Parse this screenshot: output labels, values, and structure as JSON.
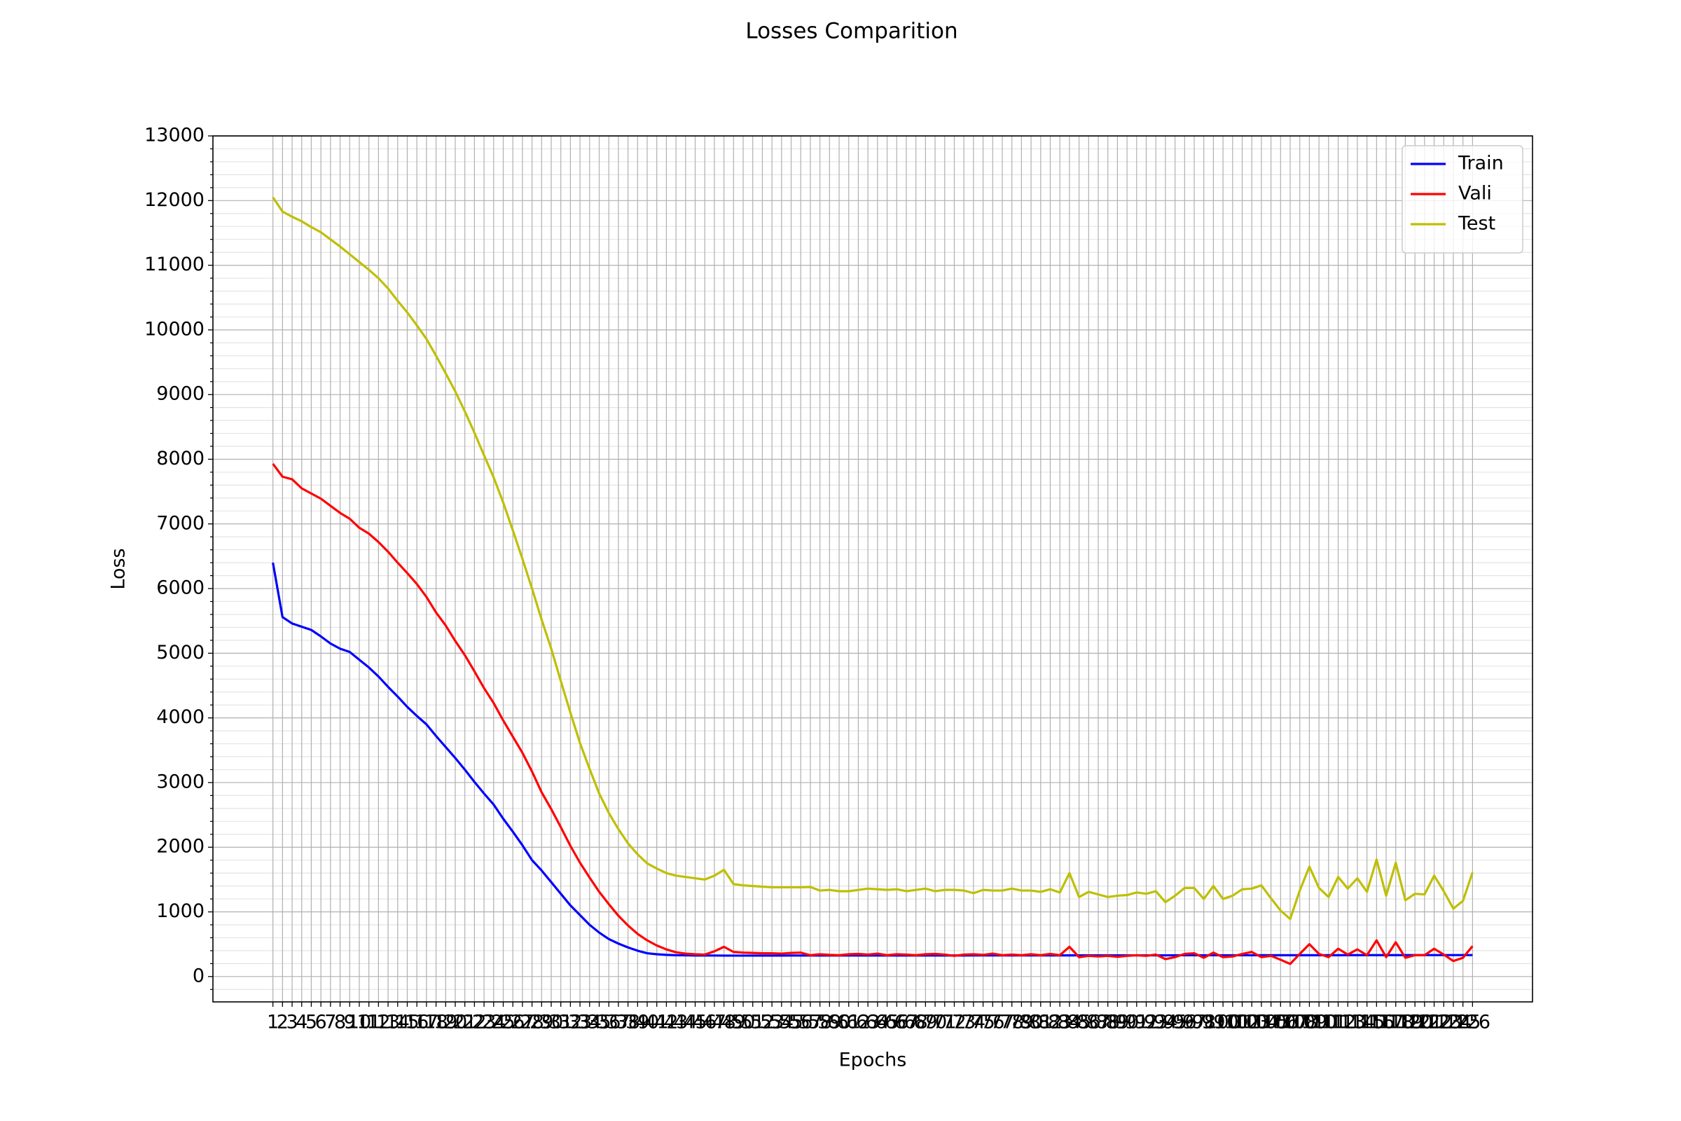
{
  "chart_data": {
    "type": "line",
    "title": "Losses Comparition",
    "xlabel": "Epochs",
    "ylabel": "Loss",
    "x": [
      1,
      2,
      3,
      4,
      5,
      6,
      7,
      8,
      9,
      10,
      11,
      12,
      13,
      14,
      15,
      16,
      17,
      18,
      19,
      20,
      21,
      22,
      23,
      24,
      25,
      26,
      27,
      28,
      29,
      30,
      31,
      32,
      33,
      34,
      35,
      36,
      37,
      38,
      39,
      40,
      41,
      42,
      43,
      44,
      45,
      46,
      47,
      48,
      49,
      50,
      51,
      52,
      53,
      54,
      55,
      56,
      57,
      58,
      59,
      60,
      61,
      62,
      63,
      64,
      65,
      66,
      67,
      68,
      69,
      70,
      71,
      72,
      73,
      74,
      75,
      76,
      77,
      78,
      79,
      80,
      81,
      82,
      83,
      84,
      85,
      86,
      87,
      88,
      89,
      90,
      91,
      92,
      93,
      94,
      95,
      96,
      97,
      98,
      99,
      100,
      101,
      102,
      103,
      104,
      105,
      106,
      107,
      108,
      109,
      110,
      111,
      112,
      113,
      114,
      115,
      116,
      117,
      118,
      119,
      120,
      121,
      122,
      123,
      124,
      125,
      126
    ],
    "series": [
      {
        "name": "Train",
        "color": "#0000ff",
        "values": [
          6400,
          5560,
          5460,
          5410,
          5360,
          5260,
          5150,
          5070,
          5020,
          4900,
          4780,
          4640,
          4480,
          4330,
          4170,
          4030,
          3900,
          3720,
          3550,
          3380,
          3200,
          3010,
          2830,
          2660,
          2440,
          2240,
          2030,
          1800,
          1640,
          1460,
          1280,
          1100,
          950,
          800,
          680,
          580,
          510,
          450,
          400,
          360,
          345,
          335,
          330,
          328,
          326,
          325,
          325,
          324,
          324,
          324,
          324,
          324,
          324,
          324,
          325,
          325,
          325,
          325,
          325,
          325,
          325,
          325,
          325,
          326,
          326,
          326,
          326,
          326,
          326,
          326,
          326,
          326,
          326,
          327,
          327,
          327,
          327,
          327,
          327,
          327,
          327,
          327,
          327,
          327,
          328,
          328,
          328,
          328,
          328,
          328,
          328,
          328,
          328,
          328,
          329,
          329,
          329,
          329,
          329,
          329,
          329,
          329,
          329,
          330,
          330,
          330,
          330,
          330,
          330,
          330,
          330,
          330,
          331,
          331,
          331,
          331,
          331,
          331,
          331,
          331,
          332,
          332,
          332,
          332,
          332,
          332
        ]
      },
      {
        "name": "Vali",
        "color": "#ff0000",
        "values": [
          7930,
          7730,
          7690,
          7550,
          7470,
          7390,
          7280,
          7170,
          7080,
          6940,
          6850,
          6720,
          6570,
          6400,
          6240,
          6070,
          5870,
          5630,
          5430,
          5190,
          4970,
          4720,
          4460,
          4230,
          3960,
          3710,
          3460,
          3170,
          2850,
          2590,
          2310,
          2020,
          1760,
          1530,
          1310,
          1120,
          940,
          790,
          660,
          560,
          480,
          420,
          375,
          355,
          345,
          340,
          390,
          460,
          380,
          370,
          365,
          360,
          360,
          355,
          365,
          370,
          330,
          345,
          335,
          330,
          345,
          350,
          340,
          355,
          330,
          345,
          340,
          330,
          345,
          350,
          340,
          320,
          340,
          345,
          335,
          355,
          330,
          340,
          330,
          345,
          330,
          350,
          330,
          460,
          300,
          320,
          310,
          320,
          305,
          320,
          330,
          320,
          340,
          270,
          300,
          350,
          360,
          290,
          370,
          300,
          310,
          350,
          380,
          300,
          320,
          260,
          195,
          350,
          500,
          350,
          300,
          430,
          340,
          420,
          330,
          560,
          300,
          530,
          290,
          330,
          330,
          430,
          340,
          240,
          290,
          470
        ]
      },
      {
        "name": "Test",
        "color": "#bfbf00",
        "values": [
          12050,
          11830,
          11750,
          11680,
          11590,
          11510,
          11400,
          11290,
          11170,
          11050,
          10930,
          10800,
          10640,
          10450,
          10270,
          10070,
          9860,
          9600,
          9330,
          9050,
          8740,
          8410,
          8060,
          7720,
          7330,
          6900,
          6460,
          6000,
          5520,
          5070,
          4570,
          4080,
          3610,
          3210,
          2830,
          2530,
          2280,
          2060,
          1890,
          1750,
          1670,
          1600,
          1560,
          1540,
          1520,
          1500,
          1560,
          1650,
          1430,
          1410,
          1400,
          1390,
          1380,
          1380,
          1380,
          1380,
          1385,
          1330,
          1340,
          1320,
          1320,
          1340,
          1360,
          1350,
          1340,
          1350,
          1320,
          1340,
          1360,
          1320,
          1340,
          1340,
          1330,
          1290,
          1340,
          1330,
          1330,
          1360,
          1330,
          1330,
          1310,
          1350,
          1300,
          1600,
          1230,
          1310,
          1270,
          1230,
          1250,
          1260,
          1300,
          1280,
          1320,
          1150,
          1250,
          1370,
          1370,
          1200,
          1400,
          1200,
          1250,
          1350,
          1360,
          1410,
          1210,
          1020,
          890,
          1330,
          1700,
          1370,
          1230,
          1540,
          1360,
          1520,
          1310,
          1810,
          1250,
          1760,
          1180,
          1280,
          1270,
          1560,
          1320,
          1050,
          1170,
          1610
        ]
      }
    ],
    "xlim": [
      -5.25,
      132.25
    ],
    "ylim": [
      -392,
      13000
    ],
    "xticks": [
      1,
      2,
      3,
      4,
      5,
      6,
      7,
      8,
      9,
      10,
      11,
      12,
      13,
      14,
      15,
      16,
      17,
      18,
      19,
      20,
      21,
      22,
      23,
      24,
      25,
      26,
      27,
      28,
      29,
      30,
      31,
      32,
      33,
      34,
      35,
      36,
      37,
      38,
      39,
      40,
      41,
      42,
      43,
      44,
      45,
      46,
      47,
      48,
      49,
      50,
      51,
      52,
      53,
      54,
      55,
      56,
      57,
      58,
      59,
      60,
      61,
      62,
      63,
      64,
      65,
      66,
      67,
      68,
      69,
      70,
      71,
      72,
      73,
      74,
      75,
      76,
      77,
      78,
      79,
      80,
      81,
      82,
      83,
      84,
      85,
      86,
      87,
      88,
      89,
      90,
      91,
      92,
      93,
      94,
      95,
      96,
      97,
      98,
      99,
      100,
      101,
      102,
      103,
      104,
      105,
      106,
      107,
      108,
      109,
      110,
      111,
      112,
      113,
      114,
      115,
      116,
      117,
      118,
      119,
      120,
      121,
      122,
      123,
      124,
      125,
      126
    ],
    "yticks": [
      0,
      1000,
      2000,
      3000,
      4000,
      5000,
      6000,
      7000,
      8000,
      9000,
      10000,
      11000,
      12000,
      13000
    ],
    "yminorticks": [
      -200,
      200,
      400,
      600,
      800,
      1200,
      1400,
      1600,
      1800,
      2200,
      2400,
      2600,
      2800,
      3200,
      3400,
      3600,
      3800,
      4200,
      4400,
      4600,
      4800,
      5200,
      5400,
      5600,
      5800,
      6200,
      6400,
      6600,
      6800,
      7200,
      7400,
      7600,
      7800,
      8200,
      8400,
      8600,
      8800,
      9200,
      9400,
      9600,
      9800,
      10200,
      10400,
      10600,
      10800,
      11200,
      11400,
      11600,
      11800,
      12200,
      12400,
      12600,
      12800
    ],
    "grid": true,
    "legend": "upper right"
  }
}
